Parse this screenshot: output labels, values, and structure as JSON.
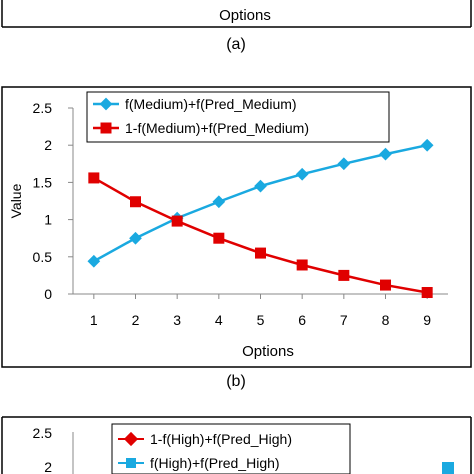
{
  "top_fragment": {
    "xlabel": "Options",
    "caption": "(a)"
  },
  "chart_data": [
    {
      "type": "line",
      "caption": "(b)",
      "xlabel": "Options",
      "ylabel": "Value",
      "x": [
        1,
        2,
        3,
        4,
        5,
        6,
        7,
        8,
        9
      ],
      "xlim": [
        0.5,
        9.5
      ],
      "ylim": [
        0,
        2.5
      ],
      "yticks": [
        "0",
        "0.5",
        "1",
        "1.5",
        "2",
        "2.5"
      ],
      "xticks": [
        "1",
        "2",
        "3",
        "4",
        "5",
        "6",
        "7",
        "8",
        "9"
      ],
      "grid": false,
      "legend_position": "top-center",
      "series": [
        {
          "name": "f(Medium)+f(Pred_Medium)",
          "color": "#1aa9e0",
          "marker": "diamond",
          "values": [
            0.44,
            0.75,
            1.02,
            1.24,
            1.45,
            1.61,
            1.75,
            1.88,
            2.0
          ]
        },
        {
          "name": "1-f(Medium)+f(Pred_Medium)",
          "color": "#e00000",
          "marker": "square",
          "values": [
            1.56,
            1.24,
            0.98,
            0.75,
            0.55,
            0.39,
            0.25,
            0.12,
            0.02
          ]
        }
      ]
    },
    {
      "type": "line",
      "yticks": [
        "2.5",
        "2"
      ],
      "legend_position": "top-center",
      "series": [
        {
          "name": "1-f(High)+f(Pred_High)",
          "color": "#e00000",
          "marker": "diamond",
          "values": []
        },
        {
          "name": "f(High)+f(Pred_High)",
          "color": "#1aa9e0",
          "marker": "square",
          "values": []
        }
      ]
    }
  ]
}
